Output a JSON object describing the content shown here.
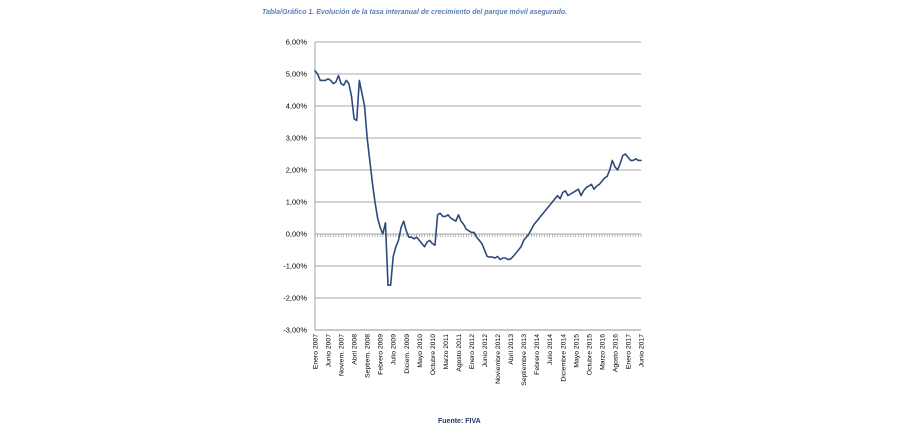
{
  "caption": "Tabla/Gráfico 1. Evolución de la tasa interanual de crecimiento del parque móvil asegurado.",
  "source": "Fuente: FIVA",
  "chart_data": {
    "type": "line",
    "title": "Tabla/Gráfico 1. Evolución de la tasa interanual de crecimiento del parque móvil asegurado.",
    "xlabel": "",
    "ylabel": "",
    "ylim": [
      -3,
      6
    ],
    "grid": true,
    "legend": "none",
    "line_color": "#2e4a7a",
    "yticks": [
      6,
      5,
      4,
      3,
      2,
      1,
      0,
      -1,
      -2,
      -3
    ],
    "ytick_labels": [
      "6,00%",
      "5,00%",
      "4,00%",
      "3,00%",
      "2,00%",
      "1,00%",
      "0,00%",
      "-1,00%",
      "-2,00%",
      "-3,00%"
    ],
    "xticks": [
      {
        "month": 0,
        "label": "Enero 2007"
      },
      {
        "month": 5,
        "label": "Junio 2007"
      },
      {
        "month": 10,
        "label": "Noviem. 2007"
      },
      {
        "month": 15,
        "label": "Abril 2008"
      },
      {
        "month": 20,
        "label": "Septiem. 2008"
      },
      {
        "month": 25,
        "label": "Febrero 2009"
      },
      {
        "month": 30,
        "label": "Julio 2009"
      },
      {
        "month": 35,
        "label": "Diciem. 2009"
      },
      {
        "month": 40,
        "label": "Mayo 2010"
      },
      {
        "month": 45,
        "label": "Octubre 2010"
      },
      {
        "month": 50,
        "label": "Marzo 2011"
      },
      {
        "month": 55,
        "label": "Agosto 2011"
      },
      {
        "month": 60,
        "label": "Enero 2012"
      },
      {
        "month": 65,
        "label": "Junio 2012"
      },
      {
        "month": 70,
        "label": "Noviembre 2012"
      },
      {
        "month": 75,
        "label": "Abril 2013"
      },
      {
        "month": 80,
        "label": "Septiembre 2013"
      },
      {
        "month": 85,
        "label": "Febrero 2014"
      },
      {
        "month": 90,
        "label": "Julio 2014"
      },
      {
        "month": 95,
        "label": "Diciembre 2014"
      },
      {
        "month": 100,
        "label": "Mayo 2015"
      },
      {
        "month": 105,
        "label": "Octubre 2015"
      },
      {
        "month": 110,
        "label": "Marzo 2016"
      },
      {
        "month": 115,
        "label": "Agosto 2016"
      },
      {
        "month": 120,
        "label": "Enero 2017"
      },
      {
        "month": 125,
        "label": "Junio 2017"
      }
    ],
    "x_month_count": 126,
    "values": [
      5.1,
      5.0,
      4.8,
      4.8,
      4.8,
      4.85,
      4.8,
      4.7,
      4.75,
      4.95,
      4.7,
      4.65,
      4.8,
      4.7,
      4.3,
      3.6,
      3.55,
      4.8,
      4.4,
      4.0,
      3.0,
      2.3,
      1.6,
      1.0,
      0.5,
      0.2,
      0.0,
      0.35,
      -1.6,
      -1.6,
      -0.7,
      -0.4,
      -0.2,
      0.2,
      0.4,
      0.1,
      -0.1,
      -0.1,
      -0.15,
      -0.1,
      -0.2,
      -0.3,
      -0.4,
      -0.25,
      -0.2,
      -0.3,
      -0.35,
      0.6,
      0.65,
      0.55,
      0.55,
      0.6,
      0.5,
      0.45,
      0.4,
      0.6,
      0.4,
      0.3,
      0.15,
      0.1,
      0.05,
      0.05,
      -0.1,
      -0.2,
      -0.3,
      -0.5,
      -0.7,
      -0.72,
      -0.72,
      -0.75,
      -0.7,
      -0.8,
      -0.75,
      -0.75,
      -0.8,
      -0.78,
      -0.7,
      -0.6,
      -0.5,
      -0.4,
      -0.2,
      -0.1,
      0.0,
      0.15,
      0.3,
      0.4,
      0.5,
      0.6,
      0.7,
      0.8,
      0.9,
      1.0,
      1.1,
      1.2,
      1.1,
      1.3,
      1.35,
      1.2,
      1.25,
      1.3,
      1.35,
      1.4,
      1.2,
      1.35,
      1.45,
      1.5,
      1.55,
      1.4,
      1.5,
      1.55,
      1.65,
      1.75,
      1.8,
      2.0,
      2.3,
      2.1,
      2.0,
      2.2,
      2.45,
      2.5,
      2.4,
      2.3,
      2.3,
      2.35,
      2.3,
      2.3
    ]
  }
}
